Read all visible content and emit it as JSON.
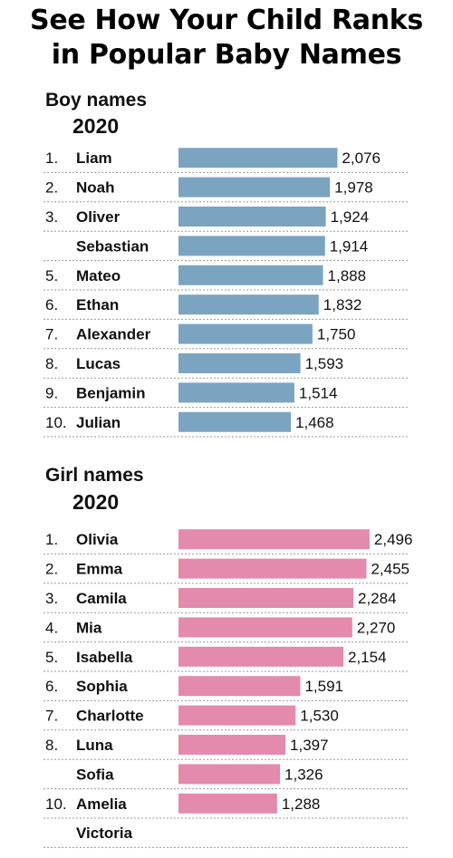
{
  "title_line1": "See How Your Child Ranks",
  "title_line2": "in Popular Baby Names",
  "colors": {
    "boy_bar": "#7ba4c1",
    "girl_bar": "#e48aad",
    "dotted": "#9a9a9a"
  },
  "chart_data": [
    {
      "type": "bar",
      "orientation": "horizontal",
      "title": "Boy names",
      "subtitle": "2020",
      "ranks": [
        "1.",
        "2.",
        "3.",
        "",
        "5.",
        "6.",
        "7.",
        "8.",
        "9.",
        "10."
      ],
      "categories": [
        "Liam",
        "Noah",
        "Oliver",
        "Sebastian",
        "Mateo",
        "Ethan",
        "Alexander",
        "Lucas",
        "Benjamin",
        "Julian"
      ],
      "values": [
        2076,
        1978,
        1924,
        1914,
        1888,
        1832,
        1750,
        1593,
        1514,
        1468
      ],
      "value_labels": [
        "2,076",
        "1,978",
        "1,924",
        "1,914",
        "1,888",
        "1,832",
        "1,750",
        "1,593",
        "1,514",
        "1,468"
      ]
    },
    {
      "type": "bar",
      "orientation": "horizontal",
      "title": "Girl names",
      "subtitle": "2020",
      "ranks": [
        "1.",
        "2.",
        "3.",
        "4.",
        "5.",
        "6.",
        "7.",
        "8.",
        "",
        "10.",
        ""
      ],
      "categories": [
        "Olivia",
        "Emma",
        "Camila",
        "Mia",
        "Isabella",
        "Sophia",
        "Charlotte",
        "Luna",
        "Sofia",
        "Amelia",
        "Victoria"
      ],
      "values": [
        2496,
        2455,
        2284,
        2270,
        2154,
        1591,
        1530,
        1397,
        1326,
        1288,
        null
      ],
      "value_labels": [
        "2,496",
        "2,455",
        "2,284",
        "2,270",
        "2,154",
        "1,591",
        "1,530",
        "1,397",
        "1,326",
        "1,288",
        ""
      ]
    }
  ]
}
